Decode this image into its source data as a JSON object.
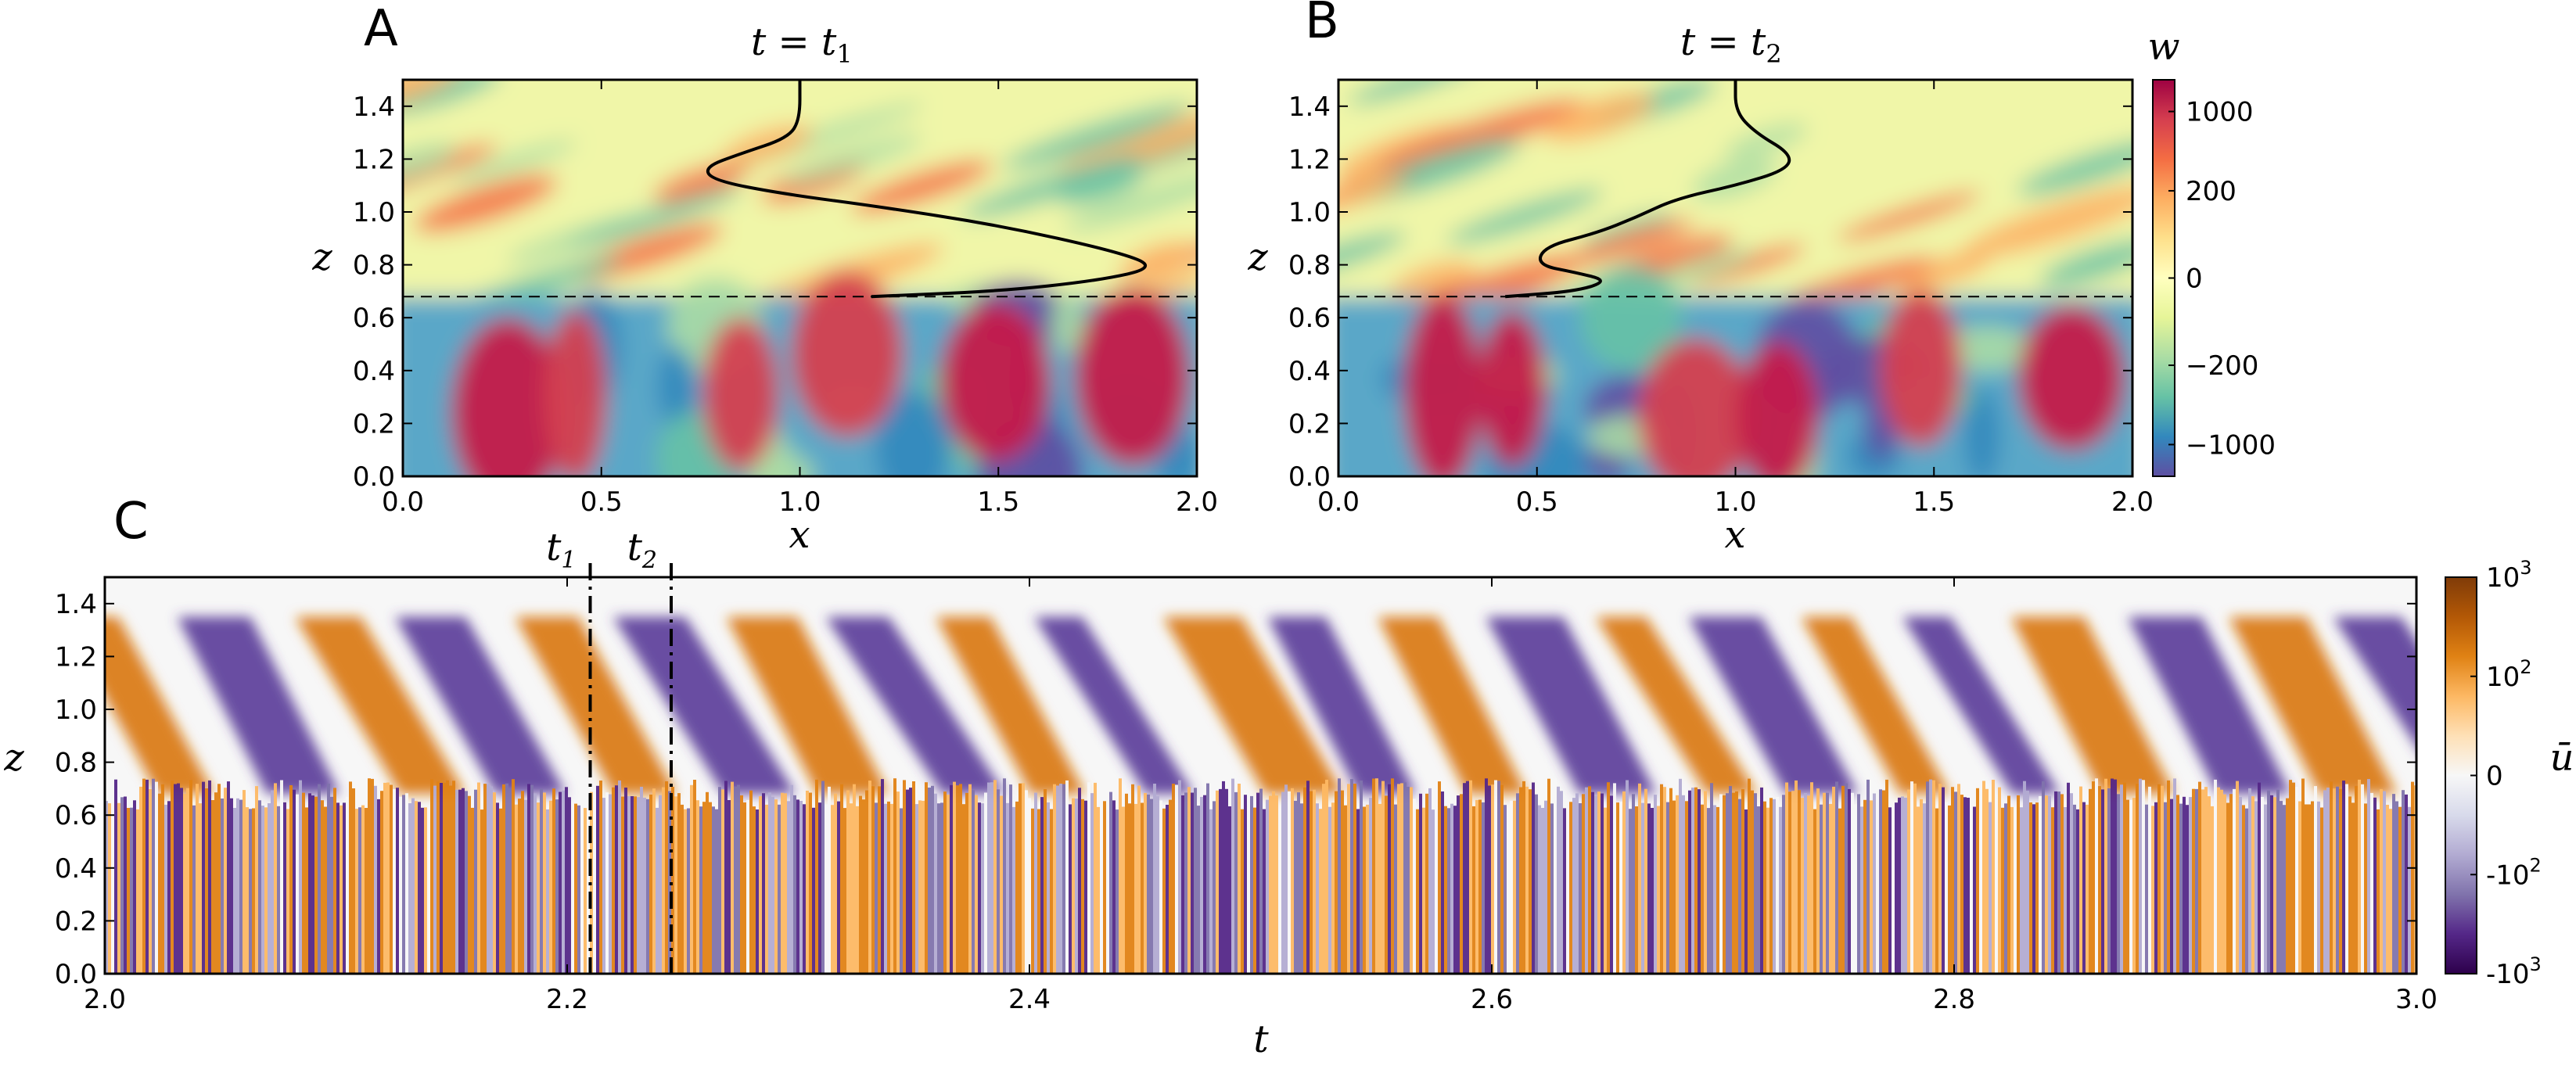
{
  "chart_data": [
    {
      "type": "heatmap",
      "panel_letter": "A",
      "title_var": "t",
      "title_eq": " = ",
      "title_val": "t",
      "title_sub": "1",
      "xlabel": "x",
      "ylabel": "z",
      "xlim": [
        0.0,
        2.0
      ],
      "ylim": [
        0.0,
        1.5
      ],
      "xticks": [
        "0.0",
        "0.5",
        "1.0",
        "1.5",
        "2.0"
      ],
      "yticks": [
        "0.0",
        "0.2",
        "0.4",
        "0.6",
        "0.8",
        "1.0",
        "1.2",
        "1.4"
      ],
      "field": "w",
      "dashed_line_z": 0.68,
      "profile": [
        [
          1.18,
          0.68
        ],
        [
          1.5,
          0.7
        ],
        [
          1.75,
          0.74
        ],
        [
          1.9,
          0.79
        ],
        [
          1.8,
          0.85
        ],
        [
          1.5,
          0.95
        ],
        [
          1.2,
          1.02
        ],
        [
          0.95,
          1.07
        ],
        [
          0.78,
          1.12
        ],
        [
          0.76,
          1.17
        ],
        [
          0.85,
          1.22
        ],
        [
          0.97,
          1.28
        ],
        [
          1.0,
          1.35
        ],
        [
          1.0,
          1.5
        ]
      ]
    },
    {
      "type": "heatmap",
      "panel_letter": "B",
      "title_var": "t",
      "title_eq": " = ",
      "title_val": "t",
      "title_sub": "2",
      "xlabel": "x",
      "ylabel": "z",
      "xlim": [
        0.0,
        2.0
      ],
      "ylim": [
        0.0,
        1.5
      ],
      "xticks": [
        "0.0",
        "0.5",
        "1.0",
        "1.5",
        "2.0"
      ],
      "yticks": [
        "0.0",
        "0.2",
        "0.4",
        "0.6",
        "0.8",
        "1.0",
        "1.2",
        "1.4"
      ],
      "field": "w",
      "dashed_line_z": 0.68,
      "profile": [
        [
          0.42,
          0.68
        ],
        [
          0.6,
          0.7
        ],
        [
          0.68,
          0.74
        ],
        [
          0.6,
          0.77
        ],
        [
          0.5,
          0.8
        ],
        [
          0.52,
          0.87
        ],
        [
          0.65,
          0.92
        ],
        [
          0.75,
          0.98
        ],
        [
          0.85,
          1.05
        ],
        [
          1.0,
          1.1
        ],
        [
          1.13,
          1.16
        ],
        [
          1.14,
          1.22
        ],
        [
          1.05,
          1.3
        ],
        [
          1.0,
          1.38
        ],
        [
          1.0,
          1.5
        ]
      ]
    },
    {
      "type": "heatmap",
      "panel_letter": "C",
      "xlabel": "t",
      "ylabel": "z",
      "xlim": [
        2.0,
        3.0
      ],
      "ylim": [
        0.0,
        1.5
      ],
      "xticks": [
        "2.0",
        "2.2",
        "2.4",
        "2.6",
        "2.8",
        "3.0"
      ],
      "yticks": [
        "0.0",
        "0.2",
        "0.4",
        "0.6",
        "0.8",
        "1.0",
        "1.2",
        "1.4"
      ],
      "field": "ū",
      "markers": [
        {
          "t": 2.21,
          "label": "t",
          "sub": "1"
        },
        {
          "t": 2.245,
          "label": "t",
          "sub": "2"
        }
      ],
      "dashed_line_z": 0.68
    }
  ],
  "colorbar_w": {
    "label": "w",
    "ticks": [
      "1000",
      "200",
      "0",
      "−200",
      "−1000"
    ],
    "colors": [
      "#9e0142",
      "#d53e4f",
      "#f46d43",
      "#fdae61",
      "#fee08b",
      "#ffffbf",
      "#e6f598",
      "#abdda4",
      "#66c2a5",
      "#3288bd",
      "#5e4fa2"
    ]
  },
  "colorbar_u": {
    "label": "ū",
    "ticks": [
      {
        "base": "10",
        "exp": "3"
      },
      {
        "base": "10",
        "exp": "2"
      },
      {
        "base": "0",
        "exp": ""
      },
      {
        "base": "-10",
        "exp": "2"
      },
      {
        "base": "-10",
        "exp": "3"
      }
    ],
    "colors": [
      "#7f3b08",
      "#b35806",
      "#e08214",
      "#fdb863",
      "#fee0b6",
      "#f7f7f7",
      "#d8daeb",
      "#b2abd2",
      "#8073ac",
      "#542788",
      "#2d004b"
    ]
  }
}
